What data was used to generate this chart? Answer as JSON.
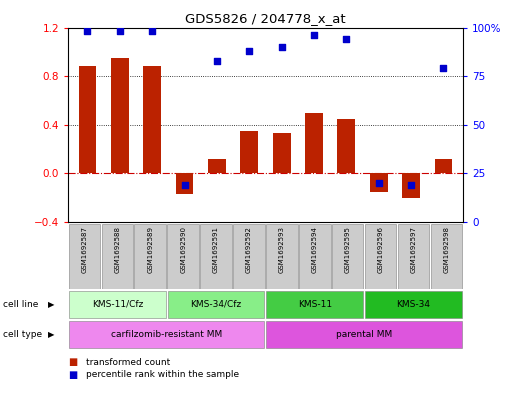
{
  "title": "GDS5826 / 204778_x_at",
  "samples": [
    "GSM1692587",
    "GSM1692588",
    "GSM1692589",
    "GSM1692590",
    "GSM1692591",
    "GSM1692592",
    "GSM1692593",
    "GSM1692594",
    "GSM1692595",
    "GSM1692596",
    "GSM1692597",
    "GSM1692598"
  ],
  "transformed_count": [
    0.88,
    0.95,
    0.88,
    -0.17,
    0.12,
    0.35,
    0.33,
    0.5,
    0.45,
    -0.15,
    -0.2,
    0.12
  ],
  "percentile_rank": [
    98,
    98,
    98,
    19,
    83,
    88,
    90,
    96,
    94,
    20,
    19,
    79
  ],
  "bar_color": "#bb2200",
  "dot_color": "#0000cc",
  "ylim_left": [
    -0.4,
    1.2
  ],
  "ylim_right": [
    0,
    100
  ],
  "yticks_left": [
    -0.4,
    0.0,
    0.4,
    0.8,
    1.2
  ],
  "yticks_right": [
    0,
    25,
    50,
    75,
    100
  ],
  "cell_line_groups": [
    {
      "label": "KMS-11/Cfz",
      "start": 0,
      "end": 3,
      "color": "#ccffcc"
    },
    {
      "label": "KMS-34/Cfz",
      "start": 3,
      "end": 6,
      "color": "#88ee88"
    },
    {
      "label": "KMS-11",
      "start": 6,
      "end": 9,
      "color": "#44cc44"
    },
    {
      "label": "KMS-34",
      "start": 9,
      "end": 12,
      "color": "#22bb22"
    }
  ],
  "cell_type_groups": [
    {
      "label": "carfilzomib-resistant MM",
      "start": 0,
      "end": 6,
      "color": "#ee88ee"
    },
    {
      "label": "parental MM",
      "start": 6,
      "end": 12,
      "color": "#dd55dd"
    }
  ],
  "legend_items": [
    {
      "label": "transformed count",
      "color": "#bb2200"
    },
    {
      "label": "percentile rank within the sample",
      "color": "#0000cc"
    }
  ],
  "hline_color": "#cc0000",
  "grid_color": "black",
  "cell_line_label": "cell line",
  "cell_type_label": "cell type",
  "background_color": "#ffffff",
  "sample_bg": "#cccccc"
}
